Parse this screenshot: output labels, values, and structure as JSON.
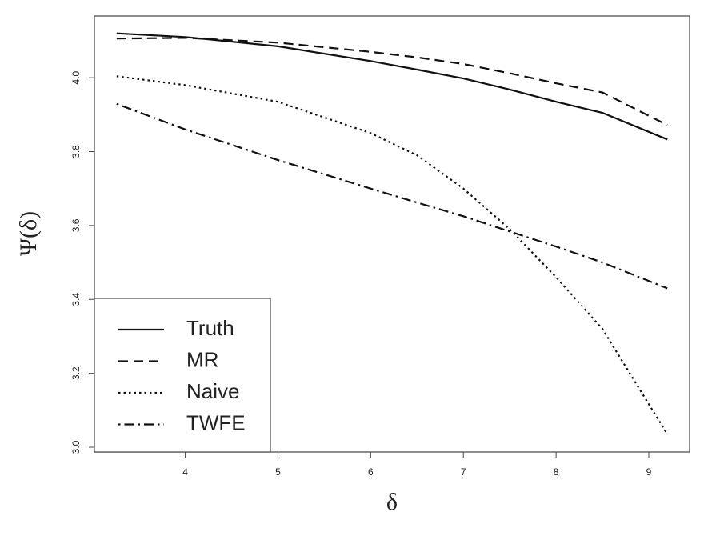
{
  "chart_data": {
    "type": "line",
    "x_label": "δ",
    "y_label": "Ψ(δ)",
    "x": [
      3.26,
      4,
      5,
      6,
      6.5,
      7,
      7.5,
      8,
      8.5,
      9.2
    ],
    "series": [
      {
        "name": "Truth",
        "color": "#111111",
        "dash": "solid",
        "values": [
          4.12,
          4.11,
          4.085,
          4.045,
          4.022,
          3.998,
          3.968,
          3.935,
          3.905,
          3.833
        ]
      },
      {
        "name": "MR",
        "color": "#111111",
        "dash": "dashed",
        "values": [
          4.106,
          4.108,
          4.095,
          4.07,
          4.055,
          4.037,
          4.012,
          3.985,
          3.96,
          3.872
        ]
      },
      {
        "name": "Naive",
        "color": "#111111",
        "dash": "dotted",
        "values": [
          4.004,
          3.98,
          3.935,
          3.85,
          3.79,
          3.7,
          3.59,
          3.46,
          3.32,
          3.035
        ]
      },
      {
        "name": "TWFE",
        "color": "#111111",
        "dash": "dotdash",
        "values": [
          3.929,
          3.86,
          3.777,
          3.7,
          3.662,
          3.625,
          3.584,
          3.543,
          3.5,
          3.43
        ]
      }
    ],
    "xlim": [
      3.02,
      9.44
    ],
    "xticks": [
      4,
      5,
      6,
      7,
      8,
      9
    ],
    "ylim": [
      2.987,
      4.167
    ],
    "yticks": [
      {
        "value": 3,
        "label": "3.0"
      },
      3.2,
      3.4,
      3.6,
      3.8,
      {
        "value": 4,
        "label": "4.0"
      }
    ],
    "legend": "bottom-left"
  }
}
